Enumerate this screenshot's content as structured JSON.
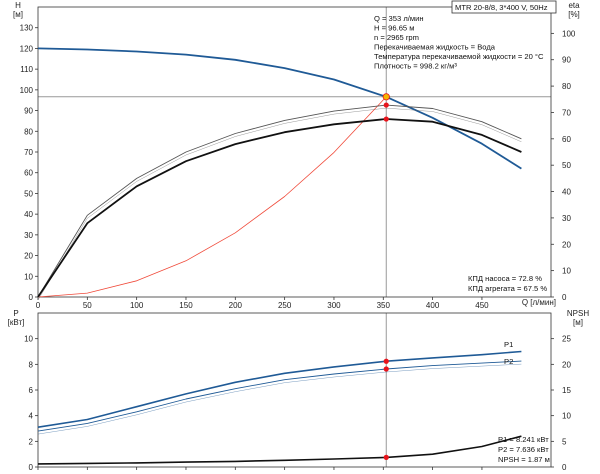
{
  "header": {
    "pump_label": "MTR 20-8/8, 3*400 V, 50Hz"
  },
  "top_chart": {
    "left_unit_line1": "H",
    "left_unit_line2": "[м]",
    "right_unit_line1": "eta",
    "right_unit_line2": "[%]",
    "x_unit": "Q [л/мин]",
    "info_lines": [
      "Q = 353 л/мин",
      "H = 96.65 м",
      "n = 2965 rpm",
      "Перекачиваемая жидкость = Вода",
      "Температура перекачиваемой жидкости = 20 °C",
      "Плотность = 998.2 кг/м³"
    ],
    "efficiency_lines": [
      "КПД насоса = 72.8 %",
      "КПД агрегата = 67.5 %"
    ]
  },
  "bottom_chart": {
    "left_unit_line1": "P",
    "left_unit_line2": "[кВт]",
    "right_unit_line1": "NPSH",
    "right_unit_line2": "[м]",
    "series_labels": {
      "p1": "P1",
      "p2": "P2"
    },
    "info_lines": [
      "P1 = 8.241 кВт",
      "P2 = 7.636 кВт",
      "NPSH = 1.87 м"
    ]
  },
  "chart_data": [
    {
      "type": "line",
      "xlabel": "Q [л/мин]",
      "ylabel": "H [м]",
      "y2label": "eta [%]",
      "xlim": [
        0,
        520
      ],
      "ylim": [
        0,
        140
      ],
      "y2lim": [
        0,
        110
      ],
      "x_ticks": [
        0,
        50,
        100,
        150,
        200,
        250,
        300,
        350,
        400,
        450
      ],
      "x_tick_labels": [
        "0",
        "50",
        "100",
        "150",
        "200",
        "250",
        "300",
        "350",
        "400",
        "450"
      ],
      "y_ticks": [
        0,
        10,
        20,
        30,
        40,
        50,
        60,
        70,
        80,
        90,
        100,
        110,
        120,
        130
      ],
      "y_tick_labels": [
        "0",
        "10",
        "20",
        "30",
        "40",
        "50",
        "60",
        "70",
        "80",
        "90",
        "100",
        "110",
        "120",
        "130"
      ],
      "y2_ticks": [
        0,
        10,
        20,
        30,
        40,
        50,
        60,
        70,
        80,
        90,
        100
      ],
      "y2_tick_labels": [
        "0",
        "10",
        "20",
        "30",
        "40",
        "50",
        "60",
        "70",
        "80",
        "90",
        "100"
      ],
      "grid": false,
      "series": [
        {
          "key": "head",
          "axis": "left",
          "color": "#1f5a96",
          "x": [
            0,
            50,
            100,
            150,
            200,
            250,
            300,
            353,
            400,
            450,
            490
          ],
          "values": [
            120,
            119.5,
            118.5,
            117,
            114.5,
            110.5,
            105,
            96.65,
            86.5,
            74,
            62
          ]
        },
        {
          "key": "system-curve",
          "axis": "left",
          "color": "#f04a3a",
          "x": [
            0,
            50,
            100,
            150,
            200,
            250,
            300,
            353
          ],
          "values": [
            0,
            1.9,
            7.8,
            17.5,
            31,
            48.5,
            69.8,
            96.65
          ]
        },
        {
          "key": "eta-pump",
          "axis": "right",
          "color": "#555555",
          "x": [
            0,
            50,
            100,
            150,
            200,
            250,
            300,
            353,
            400,
            450,
            490
          ],
          "values": [
            0,
            31,
            45,
            55,
            62,
            67,
            70.5,
            72.8,
            71.5,
            66.5,
            60
          ]
        },
        {
          "key": "eta-total",
          "axis": "right",
          "color": "#111111",
          "x": [
            0,
            50,
            100,
            150,
            200,
            250,
            300,
            353,
            400,
            450,
            490
          ],
          "values": [
            0,
            28,
            42,
            51.5,
            58,
            62.5,
            65.5,
            67.5,
            66.5,
            61.5,
            55
          ]
        }
      ],
      "points": [
        {
          "key": "duty-point",
          "axis": "left",
          "x": 353,
          "y": 96.65,
          "color": "#f5b400"
        },
        {
          "key": "eta-pump-point",
          "axis": "right",
          "x": 353,
          "y": 72.8,
          "color": "#e8141c"
        },
        {
          "key": "eta-total-point",
          "axis": "right",
          "x": 353,
          "y": 67.5,
          "color": "#e8141c"
        }
      ]
    },
    {
      "type": "line",
      "ylabel": "P [кВт]",
      "y2label": "NPSH [м]",
      "xlim": [
        0,
        520
      ],
      "ylim": [
        0,
        12
      ],
      "y2lim": [
        0,
        30
      ],
      "y_ticks": [
        0,
        2,
        4,
        6,
        8,
        10
      ],
      "y_tick_labels": [
        "0",
        "2",
        "4",
        "6",
        "8",
        "10"
      ],
      "y2_ticks": [
        0,
        5,
        10,
        15,
        20,
        25
      ],
      "y2_tick_labels": [
        "0",
        "5",
        "10",
        "15",
        "20",
        "25"
      ],
      "grid": false,
      "series": [
        {
          "key": "p1",
          "name": "P1",
          "axis": "left",
          "color": "#1f5a96",
          "x": [
            0,
            50,
            100,
            150,
            200,
            250,
            300,
            353,
            400,
            450,
            490
          ],
          "values": [
            3.1,
            3.7,
            4.7,
            5.7,
            6.6,
            7.3,
            7.8,
            8.241,
            8.5,
            8.75,
            9.0
          ]
        },
        {
          "key": "p2",
          "name": "P2",
          "axis": "left",
          "color": "#1f5a96",
          "x": [
            0,
            50,
            100,
            150,
            200,
            250,
            300,
            353,
            400,
            450,
            490
          ],
          "values": [
            2.8,
            3.4,
            4.3,
            5.3,
            6.1,
            6.8,
            7.25,
            7.636,
            7.9,
            8.1,
            8.25
          ]
        },
        {
          "key": "npsh",
          "axis": "right",
          "color": "#111111",
          "x": [
            0,
            50,
            100,
            150,
            200,
            250,
            300,
            353,
            400,
            450,
            490
          ],
          "values": [
            0.6,
            0.7,
            0.8,
            0.95,
            1.1,
            1.3,
            1.55,
            1.87,
            2.5,
            4.0,
            6.0
          ]
        }
      ],
      "points": [
        {
          "key": "p1-point",
          "axis": "left",
          "x": 353,
          "y": 8.241,
          "color": "#e8141c"
        },
        {
          "key": "p2-point",
          "axis": "left",
          "x": 353,
          "y": 7.636,
          "color": "#e8141c"
        },
        {
          "key": "npsh-point",
          "axis": "right",
          "x": 353,
          "y": 1.87,
          "color": "#e8141c"
        }
      ]
    }
  ]
}
